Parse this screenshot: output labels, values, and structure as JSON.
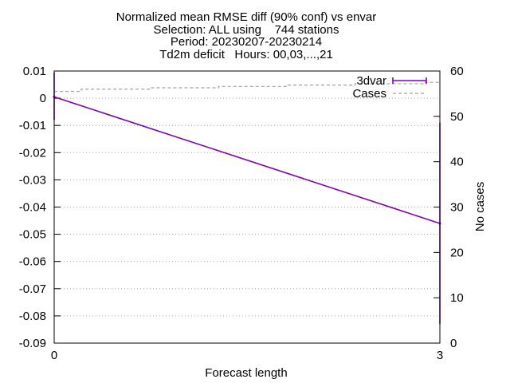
{
  "chart_data": {
    "type": "line",
    "title_lines": [
      "Normalized mean RMSE diff (90% conf) vs envar",
      "Selection: ALL using    744 stations",
      "Period: 20230207-20230214",
      "Td2m deficit   Hours: 00,03,...,21"
    ],
    "xlabel": "Forecast length",
    "ylabel": "",
    "y2label": "No cases",
    "x_ticks": [
      0,
      3
    ],
    "x_tick_labels": [
      "0",
      "3"
    ],
    "xlim": [
      0,
      3
    ],
    "ylim": [
      -0.09,
      0.01
    ],
    "y_ticks": [
      0.01,
      0,
      -0.01,
      -0.02,
      -0.03,
      -0.04,
      -0.05,
      -0.06,
      -0.07,
      -0.08,
      -0.09
    ],
    "y_tick_labels": [
      "0.01",
      "0",
      "-0.01",
      "-0.02",
      "-0.03",
      "-0.04",
      "-0.05",
      "-0.06",
      "-0.07",
      "-0.08",
      "-0.09"
    ],
    "y2lim": [
      0,
      60
    ],
    "y2_ticks": [
      60,
      50,
      40,
      30,
      20,
      10,
      0
    ],
    "y2_tick_labels": [
      "60",
      "50",
      "40",
      "30",
      "20",
      "10",
      "0"
    ],
    "grid": true,
    "legend_position": "top-right",
    "series": [
      {
        "name": "3dvar",
        "axis": "y",
        "color": "#8000b0",
        "style": "line-errorbars",
        "x": [
          0,
          3
        ],
        "values": [
          0.0005,
          -0.046
        ],
        "error_low": [
          -0.008,
          -0.083
        ],
        "error_high": [
          0.0095,
          -0.009
        ]
      },
      {
        "name": "Cases",
        "axis": "y2",
        "color": "#a0a0a0",
        "style": "dashed-step",
        "x": [
          0,
          0.21,
          0.74,
          1.28,
          1.81,
          2.34,
          2.87,
          3
        ],
        "values": [
          55.5,
          56,
          56.3,
          56.6,
          56.9,
          57.2,
          57.5,
          57.5
        ]
      }
    ]
  }
}
